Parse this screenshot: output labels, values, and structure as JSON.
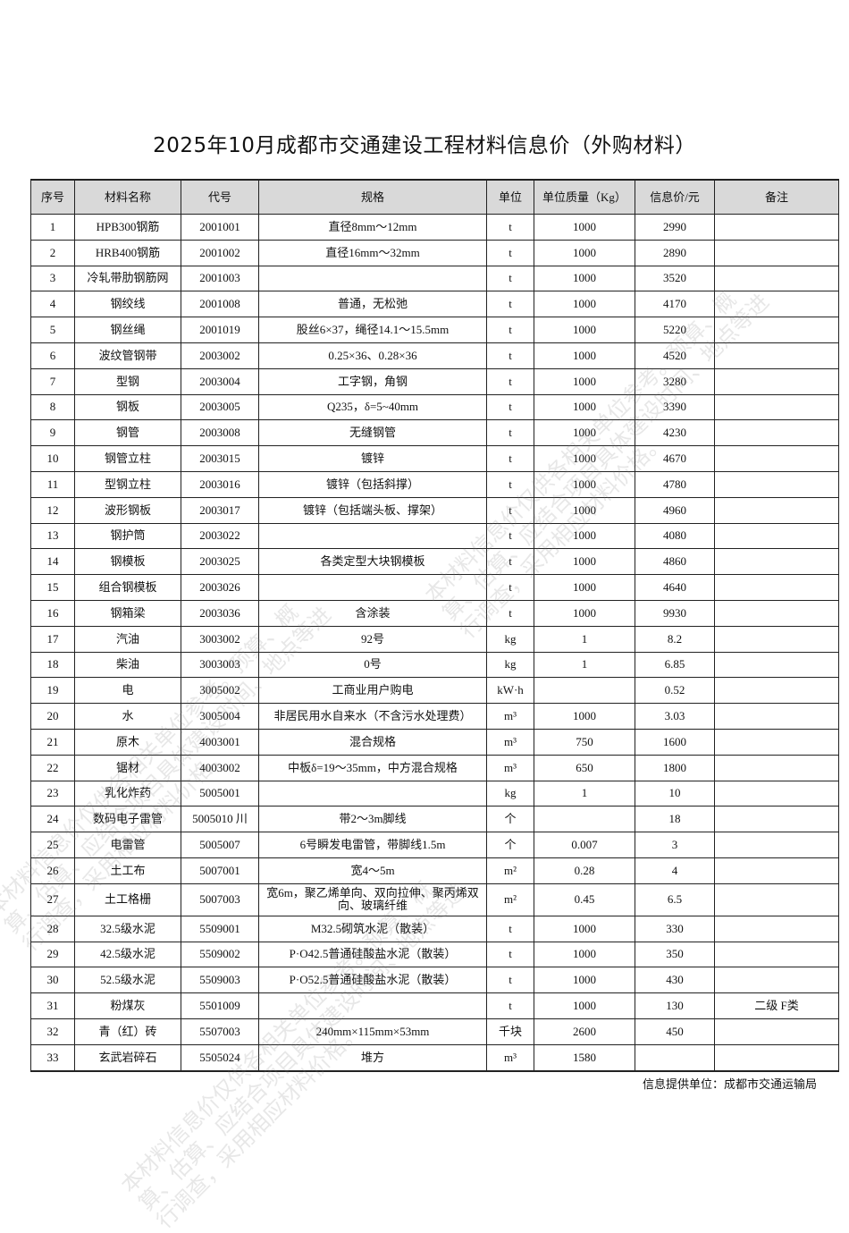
{
  "title": "2025年10月成都市交通建设工程材料信息价（外购材料）",
  "headers": [
    "序号",
    "材料名称",
    "代号",
    "规格",
    "单位",
    "单位质量（Kg）",
    "信息价/元",
    "备注"
  ],
  "rows": [
    [
      "1",
      "HPB300钢筋",
      "2001001",
      "直径8mm～12mm",
      "t",
      "1000",
      "2990",
      ""
    ],
    [
      "2",
      "HRB400钢筋",
      "2001002",
      "直径16mm～32mm",
      "t",
      "1000",
      "2890",
      ""
    ],
    [
      "3",
      "冷轧带肋钢筋网",
      "2001003",
      "",
      "t",
      "1000",
      "3520",
      ""
    ],
    [
      "4",
      "钢绞线",
      "2001008",
      "普通，无松弛",
      "t",
      "1000",
      "4170",
      ""
    ],
    [
      "5",
      "钢丝绳",
      "2001019",
      "股丝6×37，绳径14.1～15.5mm",
      "t",
      "1000",
      "5220",
      ""
    ],
    [
      "6",
      "波纹管钢带",
      "2003002",
      "0.25×36、0.28×36",
      "t",
      "1000",
      "4520",
      ""
    ],
    [
      "7",
      "型钢",
      "2003004",
      "工字钢，角钢",
      "t",
      "1000",
      "3280",
      ""
    ],
    [
      "8",
      "钢板",
      "2003005",
      "Q235，δ=5~40mm",
      "t",
      "1000",
      "3390",
      ""
    ],
    [
      "9",
      "钢管",
      "2003008",
      "无缝钢管",
      "t",
      "1000",
      "4230",
      ""
    ],
    [
      "10",
      "钢管立柱",
      "2003015",
      "镀锌",
      "t",
      "1000",
      "4670",
      ""
    ],
    [
      "11",
      "型钢立柱",
      "2003016",
      "镀锌（包括斜撑）",
      "t",
      "1000",
      "4780",
      ""
    ],
    [
      "12",
      "波形钢板",
      "2003017",
      "镀锌（包括端头板、撑架）",
      "t",
      "1000",
      "4960",
      ""
    ],
    [
      "13",
      "钢护筒",
      "2003022",
      "",
      "t",
      "1000",
      "4080",
      ""
    ],
    [
      "14",
      "钢模板",
      "2003025",
      "各类定型大块钢模板",
      "t",
      "1000",
      "4860",
      ""
    ],
    [
      "15",
      "组合钢模板",
      "2003026",
      "",
      "t",
      "1000",
      "4640",
      ""
    ],
    [
      "16",
      "钢箱梁",
      "2003036",
      "含涂装",
      "t",
      "1000",
      "9930",
      ""
    ],
    [
      "17",
      "汽油",
      "3003002",
      "92号",
      "kg",
      "1",
      "8.2",
      ""
    ],
    [
      "18",
      "柴油",
      "3003003",
      "0号",
      "kg",
      "1",
      "6.85",
      ""
    ],
    [
      "19",
      "电",
      "3005002",
      "工商业用户购电",
      "kW·h",
      "",
      "0.52",
      ""
    ],
    [
      "20",
      "水",
      "3005004",
      "非居民用水自来水（不含污水处理费）",
      "m³",
      "1000",
      "3.03",
      ""
    ],
    [
      "21",
      "原木",
      "4003001",
      "混合规格",
      "m³",
      "750",
      "1600",
      ""
    ],
    [
      "22",
      "锯材",
      "4003002",
      "中板δ=19～35mm，中方混合规格",
      "m³",
      "650",
      "1800",
      ""
    ],
    [
      "23",
      "乳化炸药",
      "5005001",
      "",
      "kg",
      "1",
      "10",
      ""
    ],
    [
      "24",
      "数码电子雷管",
      "5005010 川",
      "带2～3m脚线",
      "个",
      "",
      "18",
      ""
    ],
    [
      "25",
      "电雷管",
      "5005007",
      "6号瞬发电雷管，带脚线1.5m",
      "个",
      "0.007",
      "3",
      ""
    ],
    [
      "26",
      "土工布",
      "5007001",
      "宽4～5m",
      "m²",
      "0.28",
      "4",
      ""
    ],
    [
      "27",
      "土工格栅",
      "5007003",
      "宽6m，聚乙烯单向、双向拉伸、聚丙烯双向、玻璃纤维",
      "m²",
      "0.45",
      "6.5",
      ""
    ],
    [
      "28",
      "32.5级水泥",
      "5509001",
      "M32.5砌筑水泥（散装）",
      "t",
      "1000",
      "330",
      ""
    ],
    [
      "29",
      "42.5级水泥",
      "5509002",
      "P·O42.5普通硅酸盐水泥（散装）",
      "t",
      "1000",
      "350",
      ""
    ],
    [
      "30",
      "52.5级水泥",
      "5509003",
      "P·O52.5普通硅酸盐水泥（散装）",
      "t",
      "1000",
      "430",
      ""
    ],
    [
      "31",
      "粉煤灰",
      "5501009",
      "",
      "t",
      "1000",
      "130",
      "二级 F类"
    ],
    [
      "32",
      "青（红）砖",
      "5507003",
      "240mm×115mm×53mm",
      "千块",
      "2600",
      "450",
      ""
    ],
    [
      "33",
      "玄武岩碎石",
      "5505024",
      "堆方",
      "m³",
      "1580",
      "",
      ""
    ]
  ],
  "footer": "信息提供单位：成都市交通运输局",
  "watermark": "本材料信息价仅供各相关单位参考。预算、概算、估算、应结合项目具体建设时间、地点等进行调查，采用相应材料价格。",
  "colors": {
    "header_bg": "#d9d9d9",
    "border": "#222222"
  }
}
